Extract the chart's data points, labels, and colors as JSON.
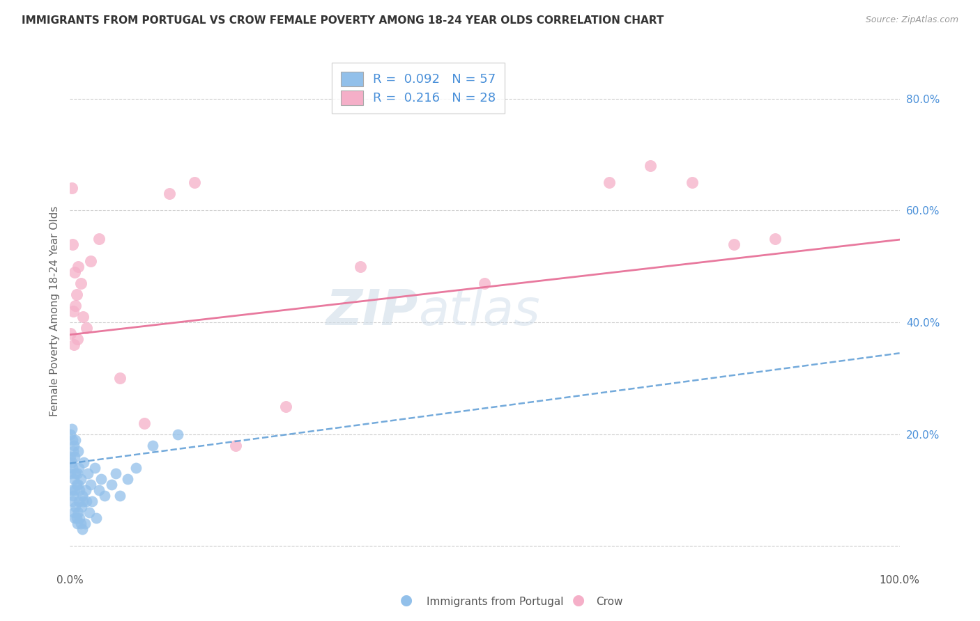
{
  "title": "IMMIGRANTS FROM PORTUGAL VS CROW FEMALE POVERTY AMONG 18-24 YEAR OLDS CORRELATION CHART",
  "source": "Source: ZipAtlas.com",
  "ylabel": "Female Poverty Among 18-24 Year Olds",
  "legend_r1": "0.092",
  "legend_n1": "57",
  "legend_r2": "0.216",
  "legend_n2": "28",
  "blue_color": "#92c0ea",
  "pink_color": "#f5afc8",
  "blue_line_color": "#5b9bd5",
  "pink_line_color": "#e8799e",
  "watermark_zip": "ZIP",
  "watermark_atlas": "atlas",
  "blue_scatter_x": [
    0.001,
    0.001,
    0.001,
    0.002,
    0.002,
    0.002,
    0.003,
    0.003,
    0.003,
    0.004,
    0.004,
    0.005,
    0.005,
    0.005,
    0.006,
    0.006,
    0.006,
    0.007,
    0.007,
    0.007,
    0.008,
    0.008,
    0.009,
    0.009,
    0.01,
    0.01,
    0.01,
    0.011,
    0.011,
    0.012,
    0.012,
    0.013,
    0.013,
    0.014,
    0.015,
    0.015,
    0.016,
    0.017,
    0.018,
    0.019,
    0.02,
    0.022,
    0.023,
    0.025,
    0.027,
    0.03,
    0.032,
    0.035,
    0.038,
    0.042,
    0.05,
    0.055,
    0.06,
    0.07,
    0.08,
    0.1,
    0.13
  ],
  "blue_scatter_y": [
    0.13,
    0.16,
    0.2,
    0.1,
    0.15,
    0.21,
    0.08,
    0.14,
    0.19,
    0.09,
    0.17,
    0.06,
    0.12,
    0.18,
    0.05,
    0.1,
    0.16,
    0.07,
    0.13,
    0.19,
    0.05,
    0.11,
    0.04,
    0.13,
    0.06,
    0.11,
    0.17,
    0.08,
    0.14,
    0.05,
    0.1,
    0.04,
    0.12,
    0.07,
    0.03,
    0.09,
    0.08,
    0.15,
    0.04,
    0.1,
    0.08,
    0.13,
    0.06,
    0.11,
    0.08,
    0.14,
    0.05,
    0.1,
    0.12,
    0.09,
    0.11,
    0.13,
    0.09,
    0.12,
    0.14,
    0.18,
    0.2
  ],
  "pink_scatter_x": [
    0.001,
    0.002,
    0.003,
    0.004,
    0.005,
    0.006,
    0.007,
    0.008,
    0.009,
    0.01,
    0.013,
    0.016,
    0.02,
    0.025,
    0.035,
    0.06,
    0.09,
    0.12,
    0.15,
    0.2,
    0.26,
    0.35,
    0.5,
    0.65,
    0.7,
    0.75,
    0.8,
    0.85
  ],
  "pink_scatter_y": [
    0.38,
    0.64,
    0.54,
    0.42,
    0.36,
    0.49,
    0.43,
    0.45,
    0.37,
    0.5,
    0.47,
    0.41,
    0.39,
    0.51,
    0.55,
    0.3,
    0.22,
    0.63,
    0.65,
    0.18,
    0.25,
    0.5,
    0.47,
    0.65,
    0.68,
    0.65,
    0.54,
    0.55
  ],
  "blue_line_x0": 0.0,
  "blue_line_y0": 0.148,
  "blue_line_x1": 1.0,
  "blue_line_y1": 0.345,
  "pink_line_x0": 0.0,
  "pink_line_y0": 0.378,
  "pink_line_x1": 1.0,
  "pink_line_y1": 0.548,
  "xlim": [
    0.0,
    1.0
  ],
  "ylim": [
    -0.04,
    0.88
  ],
  "ytick_positions": [
    0.0,
    0.2,
    0.4,
    0.6,
    0.8
  ],
  "ytick_labels": [
    "",
    "20.0%",
    "40.0%",
    "60.0%",
    "80.0%"
  ],
  "grid_color": "#cccccc",
  "title_fontsize": 11,
  "source_fontsize": 9,
  "tick_fontsize": 11
}
